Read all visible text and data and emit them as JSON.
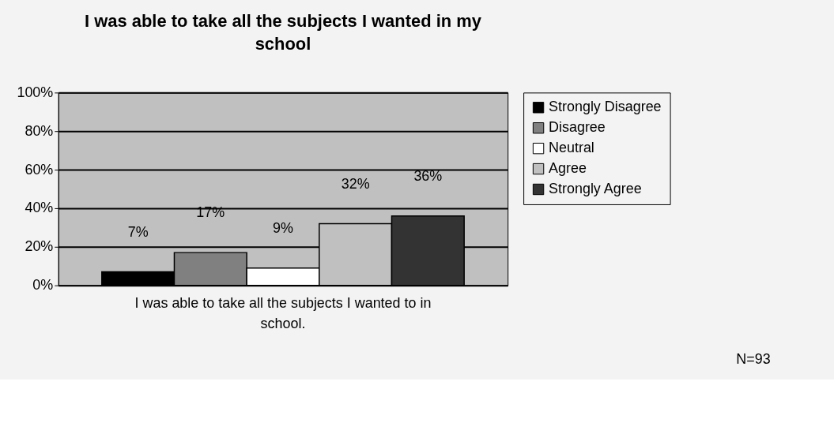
{
  "chart_data": {
    "type": "bar",
    "title": "I was able to take all the subjects I wanted in my school",
    "categories": [
      "I was able to take all the subjects I wanted to in school."
    ],
    "series": [
      {
        "name": "Strongly Disagree",
        "color": "#000000",
        "values": [
          7
        ],
        "value_labels": [
          "7%"
        ]
      },
      {
        "name": "Disagree",
        "color": "#808080",
        "values": [
          17
        ],
        "value_labels": [
          "17%"
        ]
      },
      {
        "name": "Neutral",
        "color": "#ffffff",
        "values": [
          9
        ],
        "value_labels": [
          "9%"
        ]
      },
      {
        "name": "Agree",
        "color": "#c0c0c0",
        "values": [
          32
        ],
        "value_labels": [
          "32%"
        ]
      },
      {
        "name": "Strongly Agree",
        "color": "#333333",
        "values": [
          36
        ],
        "value_labels": [
          "36%"
        ]
      }
    ],
    "ylim": [
      0,
      100
    ],
    "yticks": [
      {
        "value": 0,
        "label": "0%"
      },
      {
        "value": 20,
        "label": "20%"
      },
      {
        "value": 40,
        "label": "40%"
      },
      {
        "value": 60,
        "label": "60%"
      },
      {
        "value": 80,
        "label": "80%"
      },
      {
        "value": 100,
        "label": "100%"
      }
    ],
    "grid": "y",
    "legend": "right",
    "annotations": [
      "N=93"
    ]
  }
}
